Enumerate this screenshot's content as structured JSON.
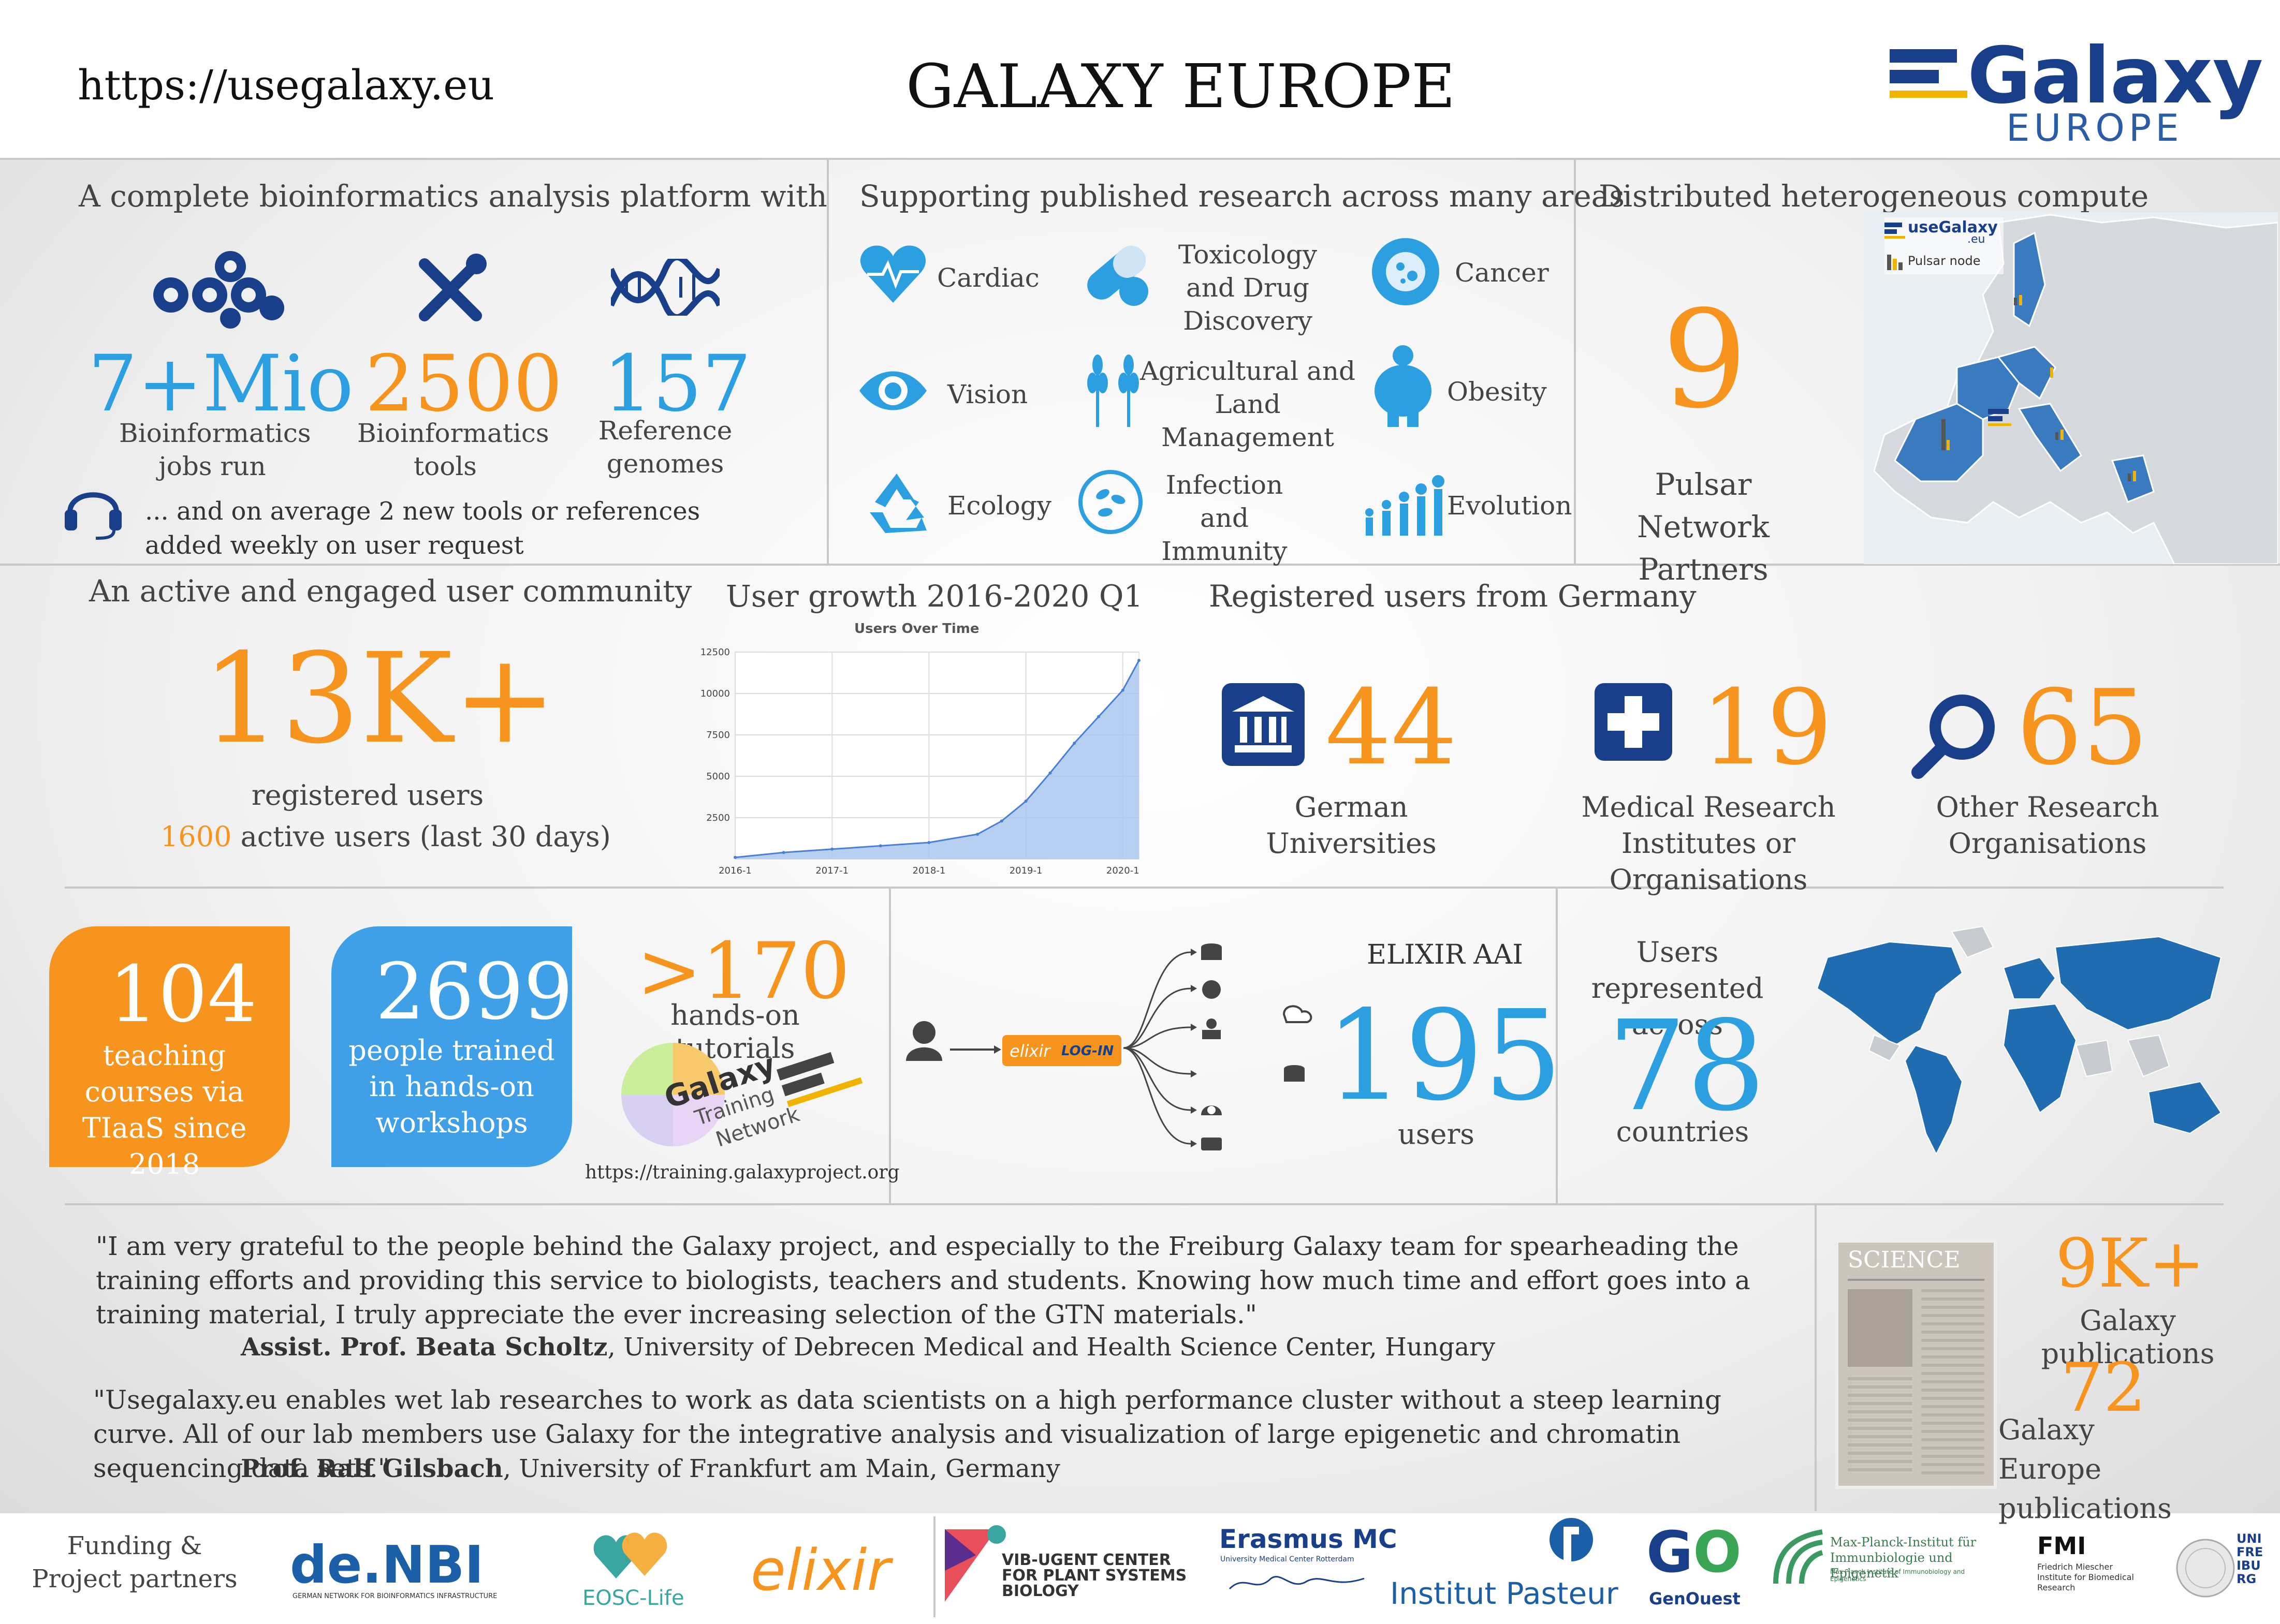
{
  "header": {
    "url": "https://usegalaxy.eu",
    "title": "GALAXY EUROPE",
    "logo_word": "Galaxy",
    "logo_sub": "EUROPE"
  },
  "platform": {
    "title": "A complete bioinformatics analysis platform with",
    "stats": [
      {
        "value": "7+Mio",
        "label": "Bioinformatics jobs run",
        "color": "#2c9fe0"
      },
      {
        "value": "2500",
        "label": "Bioinformatics tools",
        "color": "#f7941d"
      },
      {
        "value": "157",
        "label": "Reference genomes",
        "color": "#2c9fe0"
      }
    ],
    "note": "... and on average 2 new tools or references added weekly on user request"
  },
  "research": {
    "title": "Supporting published research across many areas",
    "areas": [
      "Cardiac",
      "Toxicology and Drug Discovery",
      "Cancer",
      "Vision",
      "Agricultural and Land Management",
      "Obesity",
      "Ecology",
      "Infection and Immunity",
      "Evolution"
    ]
  },
  "compute": {
    "title": "Distributed heterogeneous compute",
    "value": "9",
    "label": "Pulsar Network Partners",
    "legend_main": "useGalaxy",
    "legend_main_sub": ".eu",
    "legend_node": "Pulsar node"
  },
  "community": {
    "title": "An active and engaged user community",
    "value": "13K+",
    "label": "registered users",
    "active_value": "1600",
    "active_label": "active users (last 30 days)"
  },
  "growth": {
    "title": "User growth 2016-2020 Q1",
    "chart_title": "Users Over Time"
  },
  "germany": {
    "title": "Registered users from Germany",
    "items": [
      {
        "value": "44",
        "label": "German Universities"
      },
      {
        "value": "19",
        "label": "Medical Research Institutes or Organisations"
      },
      {
        "value": "65",
        "label": "Other Research Organisations"
      }
    ]
  },
  "training": {
    "courses_value": "104",
    "courses_label": "teaching courses via TIaaS since 2018",
    "trained_value": "2699",
    "trained_label": "people trained in hands-on workshops",
    "tutorials_value": ">170",
    "tutorials_label": "hands-on tutorials",
    "gtn_word1": "Galaxy",
    "gtn_word2": "Training",
    "gtn_word3": "Network",
    "url": "https://training.galaxyproject.org"
  },
  "aai": {
    "title": "ELIXIR AAI",
    "value": "195",
    "label": "users",
    "login_brand": "elixir",
    "login_text": "LOG-IN"
  },
  "countries": {
    "title": "Users represented across",
    "value": "78",
    "label": "countries"
  },
  "quotes": [
    {
      "text": "\"I am very grateful to the people behind the Galaxy project, and especially to the Freiburg Galaxy team for spearheading the training efforts and providing this service to biologists, teachers and students. Knowing how much time and effort goes into a training material, I truly appreciate the ever increasing selection of the GTN materials.\"",
      "author": "Assist. Prof. Beata Scholtz",
      "affiliation": ", University of Debrecen Medical and Health Science Center, Hungary"
    },
    {
      "text": "\"Usegalaxy.eu enables wet lab researches to work as data scientists on a high performance cluster without a steep learning curve. All of our lab members use Galaxy for the integrative analysis and visualization of large epigenetic and chromatin sequencing data sets.\"",
      "author": "Prof. Ralf Gilsbach",
      "affiliation": ", University of Frankfurt am Main, Germany"
    }
  ],
  "publications": {
    "paper_label": "SCIENCE",
    "total_value": "9K+",
    "total_label": "Galaxy publications",
    "eu_value": "72",
    "eu_label": "Galaxy Europe publications"
  },
  "partners": {
    "label": "Funding & Project partners",
    "denbi": "de.NBI",
    "denbi_sub": "GERMAN NETWORK FOR BIOINFORMATICS INFRASTRUCTURE",
    "eosc": "EOSC-Life",
    "elixir": "elixir",
    "vib": "VIB-UGENT CENTER FOR PLANT SYSTEMS BIOLOGY",
    "erasmus": "Erasmus MC",
    "erasmus_sub": "University Medical Center Rotterdam",
    "pasteur": "Institut Pasteur",
    "genouest": "GenOuest",
    "mpi": "Max-Planck-Institut für Immunbiologie und Epigenetik",
    "mpi_sub": "Max Planck Institute of Immunobiology and Epigenetics",
    "fmi": "FMI",
    "fmi_sub": "Friedrich Miescher Institute for Biomedical Research",
    "freiburg": "UNI FREIBURG"
  },
  "chart_data": {
    "type": "area",
    "title": "Users Over Time",
    "x": [
      "2016-1",
      "2016-7",
      "2017-1",
      "2017-7",
      "2018-1",
      "2018-7",
      "2018-10",
      "2019-1",
      "2019-4",
      "2019-7",
      "2019-10",
      "2020-1",
      "2020-3"
    ],
    "values": [
      100,
      400,
      600,
      800,
      1000,
      1500,
      2300,
      3500,
      5200,
      7000,
      8600,
      10200,
      12000
    ],
    "xticks": [
      "2016-1",
      "2017-1",
      "2018-1",
      "2019-1",
      "2020-1"
    ],
    "yticks": [
      "2500",
      "5000",
      "7500",
      "10000",
      "12500"
    ],
    "ylim": [
      0,
      12500
    ],
    "grid": true,
    "fill_color": "#aac8f0",
    "line_color": "#4a7fd6"
  }
}
